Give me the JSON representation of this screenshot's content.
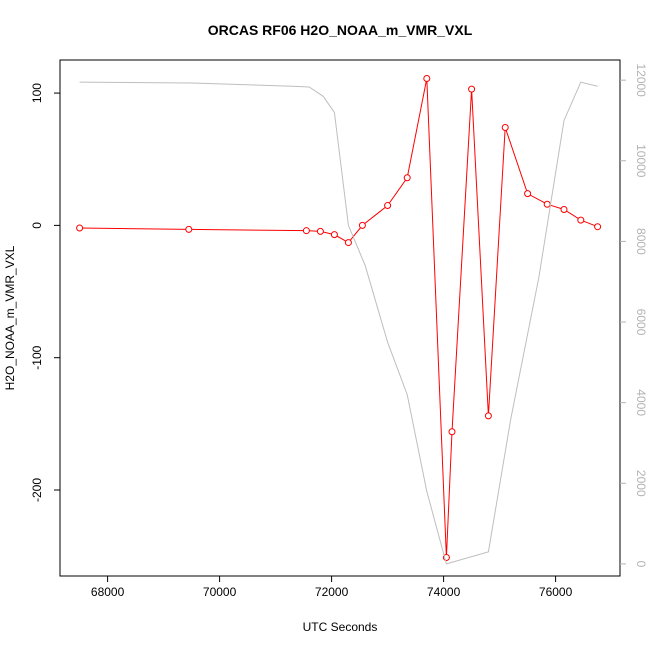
{
  "chart_data": {
    "type": "line",
    "title": "ORCAS RF06 H2O_NOAA_m_VMR_VXL",
    "xlabel": "UTC Seconds",
    "ylabel": "H2O_NOAA_m_VMR_VXL",
    "xlim": [
      67150,
      77150
    ],
    "ylim": [
      -265,
      125
    ],
    "y2lim": [
      -300,
      12500
    ],
    "x_ticks": [
      68000,
      70000,
      72000,
      74000,
      76000
    ],
    "y_ticks": [
      -200,
      -100,
      0,
      100
    ],
    "y2_ticks": [
      0,
      2000,
      4000,
      6000,
      8000,
      10000,
      12000
    ],
    "grid": false,
    "colors": {
      "primary": "#ff0000",
      "secondary": "#bebebe"
    },
    "series": [
      {
        "axis": "left",
        "style": "line+points",
        "color": "#ff0000",
        "x": [
          67500,
          69450,
          71550,
          71800,
          72050,
          72300,
          72550,
          73000,
          73350,
          73700,
          74050,
          74150,
          74500,
          74800,
          75100,
          75500,
          75850,
          76150,
          76450,
          76750
        ],
        "y": [
          -2,
          -3,
          -4,
          -4.5,
          -7,
          -13,
          0,
          15,
          36,
          111,
          -251,
          -156,
          103,
          -144,
          74,
          24,
          16,
          12,
          4,
          -1
        ]
      },
      {
        "axis": "right",
        "style": "line",
        "color": "#bebebe",
        "x": [
          67500,
          69500,
          71300,
          71600,
          71850,
          72050,
          72300,
          72600,
          73000,
          73350,
          73700,
          74050,
          74800,
          75200,
          75700,
          76150,
          76450,
          76750
        ],
        "y": [
          11950,
          11930,
          11850,
          11830,
          11600,
          11200,
          8400,
          7400,
          5500,
          4200,
          1800,
          0,
          300,
          3600,
          7100,
          11000,
          11950,
          11850
        ]
      }
    ]
  }
}
